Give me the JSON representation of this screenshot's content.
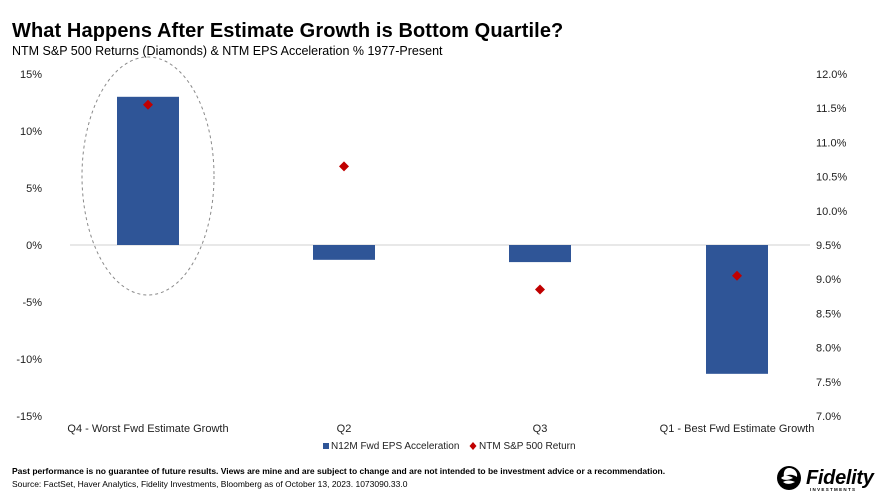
{
  "title": "What Happens After Estimate Growth is Bottom Quartile?",
  "subtitle": "NTM S&P 500 Returns (Diamonds) & NTM EPS Acceleration % 1977-Present",
  "footer": {
    "disclaimer": "Past performance is no guarantee of future results. Views are mine and are subject to change and are not intended to be investment advice or a recommendation.",
    "source": "Source: FactSet, Haver Analytics, Fidelity Investments, Bloomberg as of October 13, 2023. 1073090.33.0"
  },
  "logo": {
    "text": "Fidelity",
    "subtext": "INVESTMENTS",
    "icon": "fidelity-swirl-icon"
  },
  "chart_data": {
    "type": "bar",
    "categories": [
      "Q4 - Worst Fwd Estimate Growth",
      "Q2",
      "Q3",
      "Q1 - Best Fwd Estimate Growth"
    ],
    "series": [
      {
        "name": "N12M Fwd EPS Acceleration",
        "kind": "bar",
        "axis": "left",
        "color": "#2f5597",
        "values": [
          13.0,
          -1.3,
          -1.5,
          -11.3
        ]
      },
      {
        "name": "NTM S&P 500 Return",
        "kind": "diamond",
        "axis": "right",
        "color": "#c00000",
        "values": [
          11.55,
          10.65,
          8.85,
          9.05
        ]
      }
    ],
    "y_left": {
      "min": -15,
      "max": 15,
      "step": 5,
      "ticks": [
        "15%",
        "10%",
        "5%",
        "0%",
        "-5%",
        "-10%",
        "-15%"
      ]
    },
    "y_right": {
      "min": 7.0,
      "max": 12.0,
      "step": 0.5,
      "ticks": [
        "12.0%",
        "11.5%",
        "11.0%",
        "10.5%",
        "10.0%",
        "9.5%",
        "9.0%",
        "8.5%",
        "8.0%",
        "7.5%",
        "7.0%"
      ]
    },
    "grid": false,
    "legend": "bottom",
    "highlight": {
      "category_index": 0,
      "shape": "dashed-ellipse"
    }
  }
}
